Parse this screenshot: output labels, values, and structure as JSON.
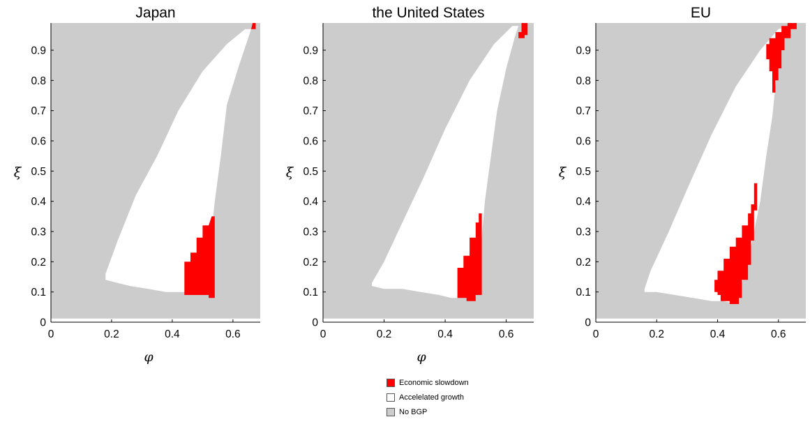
{
  "chart_data": [
    {
      "type": "heatmap",
      "title": "Japan",
      "xlabel": "φ",
      "ylabel": "ξ",
      "xlim": [
        0,
        0.69
      ],
      "ylim": [
        0,
        0.99
      ],
      "xticks": [
        "0",
        "0.2",
        "0.4",
        "0.6"
      ],
      "yticks": [
        "0",
        "0.1",
        "0.2",
        "0.3",
        "0.4",
        "0.5",
        "0.6",
        "0.7",
        "0.8",
        "0.9"
      ],
      "regions": {
        "accelerated_growth": [
          [
            0.18,
            0.14
          ],
          [
            0.22,
            0.13
          ],
          [
            0.26,
            0.12
          ],
          [
            0.32,
            0.11
          ],
          [
            0.38,
            0.1
          ],
          [
            0.44,
            0.1
          ],
          [
            0.48,
            0.09
          ],
          [
            0.52,
            0.09
          ],
          [
            0.53,
            0.3
          ],
          [
            0.54,
            0.4
          ],
          [
            0.56,
            0.55
          ],
          [
            0.58,
            0.72
          ],
          [
            0.62,
            0.85
          ],
          [
            0.66,
            0.97
          ],
          [
            0.64,
            0.97
          ],
          [
            0.58,
            0.92
          ],
          [
            0.5,
            0.83
          ],
          [
            0.42,
            0.7
          ],
          [
            0.35,
            0.55
          ],
          [
            0.28,
            0.42
          ],
          [
            0.22,
            0.27
          ],
          [
            0.18,
            0.16
          ]
        ],
        "economic_slowdown": [
          [
            [
              0.44,
              0.09
            ],
            [
              0.44,
              0.2
            ],
            [
              0.46,
              0.2
            ],
            [
              0.46,
              0.23
            ],
            [
              0.48,
              0.23
            ],
            [
              0.48,
              0.28
            ],
            [
              0.5,
              0.28
            ],
            [
              0.5,
              0.32
            ],
            [
              0.52,
              0.32
            ],
            [
              0.53,
              0.35
            ],
            [
              0.54,
              0.35
            ],
            [
              0.54,
              0.08
            ],
            [
              0.52,
              0.08
            ],
            [
              0.52,
              0.09
            ]
          ],
          [
            [
              0.66,
              0.97
            ],
            [
              0.665,
              0.99
            ],
            [
              0.675,
              0.99
            ],
            [
              0.675,
              0.97
            ]
          ]
        ]
      }
    },
    {
      "type": "heatmap",
      "title": "the United States",
      "xlabel": "φ",
      "ylabel": "ξ",
      "xlim": [
        0,
        0.69
      ],
      "ylim": [
        0,
        0.99
      ],
      "xticks": [
        "0",
        "0.2",
        "0.4",
        "0.6"
      ],
      "yticks": [
        "0",
        "0.1",
        "0.2",
        "0.3",
        "0.4",
        "0.5",
        "0.6",
        "0.7",
        "0.8",
        "0.9"
      ],
      "regions": {
        "accelerated_growth": [
          [
            0.16,
            0.12
          ],
          [
            0.2,
            0.11
          ],
          [
            0.26,
            0.11
          ],
          [
            0.32,
            0.1
          ],
          [
            0.38,
            0.09
          ],
          [
            0.42,
            0.08
          ],
          [
            0.46,
            0.08
          ],
          [
            0.5,
            0.08
          ],
          [
            0.52,
            0.28
          ],
          [
            0.53,
            0.4
          ],
          [
            0.55,
            0.55
          ],
          [
            0.57,
            0.7
          ],
          [
            0.6,
            0.84
          ],
          [
            0.63,
            0.95
          ],
          [
            0.64,
            0.98
          ],
          [
            0.62,
            0.98
          ],
          [
            0.56,
            0.92
          ],
          [
            0.48,
            0.8
          ],
          [
            0.4,
            0.64
          ],
          [
            0.33,
            0.48
          ],
          [
            0.26,
            0.33
          ],
          [
            0.2,
            0.2
          ],
          [
            0.16,
            0.13
          ]
        ],
        "economic_slowdown": [
          [
            [
              0.44,
              0.08
            ],
            [
              0.44,
              0.18
            ],
            [
              0.46,
              0.18
            ],
            [
              0.46,
              0.22
            ],
            [
              0.48,
              0.22
            ],
            [
              0.48,
              0.28
            ],
            [
              0.5,
              0.28
            ],
            [
              0.5,
              0.33
            ],
            [
              0.51,
              0.33
            ],
            [
              0.51,
              0.36
            ],
            [
              0.52,
              0.36
            ],
            [
              0.52,
              0.09
            ],
            [
              0.5,
              0.09
            ],
            [
              0.5,
              0.07
            ],
            [
              0.47,
              0.07
            ],
            [
              0.47,
              0.08
            ]
          ],
          [
            [
              0.64,
              0.94
            ],
            [
              0.64,
              0.96
            ],
            [
              0.65,
              0.96
            ],
            [
              0.65,
              0.99
            ],
            [
              0.67,
              0.99
            ],
            [
              0.67,
              0.95
            ],
            [
              0.66,
              0.95
            ],
            [
              0.66,
              0.94
            ]
          ]
        ]
      }
    },
    {
      "type": "heatmap",
      "title": "EU",
      "xlabel": "",
      "ylabel": "ξ",
      "xlim": [
        0,
        0.69
      ],
      "ylim": [
        0,
        0.99
      ],
      "xticks": [
        "0",
        "0.2",
        "0.4",
        "0.6"
      ],
      "yticks": [
        "0",
        "0.1",
        "0.2",
        "0.3",
        "0.4",
        "0.5",
        "0.6",
        "0.7",
        "0.8",
        "0.9"
      ],
      "regions": {
        "accelerated_growth": [
          [
            0.16,
            0.1
          ],
          [
            0.2,
            0.1
          ],
          [
            0.26,
            0.09
          ],
          [
            0.32,
            0.08
          ],
          [
            0.38,
            0.07
          ],
          [
            0.42,
            0.07
          ],
          [
            0.46,
            0.06
          ],
          [
            0.5,
            0.2
          ],
          [
            0.54,
            0.4
          ],
          [
            0.56,
            0.55
          ],
          [
            0.58,
            0.68
          ],
          [
            0.59,
            0.78
          ],
          [
            0.6,
            0.88
          ],
          [
            0.62,
            0.96
          ],
          [
            0.64,
            0.98
          ],
          [
            0.6,
            0.97
          ],
          [
            0.54,
            0.9
          ],
          [
            0.46,
            0.78
          ],
          [
            0.38,
            0.62
          ],
          [
            0.3,
            0.44
          ],
          [
            0.24,
            0.3
          ],
          [
            0.18,
            0.17
          ],
          [
            0.16,
            0.11
          ]
        ],
        "economic_slowdown": [
          [
            [
              0.39,
              0.1
            ],
            [
              0.39,
              0.14
            ],
            [
              0.4,
              0.14
            ],
            [
              0.4,
              0.17
            ],
            [
              0.42,
              0.17
            ],
            [
              0.42,
              0.21
            ],
            [
              0.44,
              0.21
            ],
            [
              0.44,
              0.25
            ],
            [
              0.46,
              0.25
            ],
            [
              0.46,
              0.28
            ],
            [
              0.48,
              0.28
            ],
            [
              0.48,
              0.32
            ],
            [
              0.5,
              0.32
            ],
            [
              0.5,
              0.36
            ],
            [
              0.51,
              0.36
            ],
            [
              0.51,
              0.39
            ],
            [
              0.52,
              0.39
            ],
            [
              0.52,
              0.46
            ],
            [
              0.53,
              0.46
            ],
            [
              0.53,
              0.37
            ],
            [
              0.52,
              0.37
            ],
            [
              0.52,
              0.27
            ],
            [
              0.51,
              0.27
            ],
            [
              0.51,
              0.19
            ],
            [
              0.5,
              0.19
            ],
            [
              0.5,
              0.14
            ],
            [
              0.48,
              0.14
            ],
            [
              0.48,
              0.08
            ],
            [
              0.47,
              0.08
            ],
            [
              0.47,
              0.06
            ],
            [
              0.44,
              0.06
            ],
            [
              0.44,
              0.07
            ],
            [
              0.41,
              0.07
            ],
            [
              0.41,
              0.09
            ],
            [
              0.4,
              0.09
            ],
            [
              0.4,
              0.1
            ]
          ],
          [
            [
              0.56,
              0.87
            ],
            [
              0.56,
              0.92
            ],
            [
              0.57,
              0.92
            ],
            [
              0.57,
              0.94
            ],
            [
              0.59,
              0.94
            ],
            [
              0.59,
              0.96
            ],
            [
              0.61,
              0.96
            ],
            [
              0.61,
              0.98
            ],
            [
              0.63,
              0.98
            ],
            [
              0.63,
              0.99
            ],
            [
              0.66,
              0.99
            ],
            [
              0.66,
              0.97
            ],
            [
              0.64,
              0.97
            ],
            [
              0.64,
              0.94
            ],
            [
              0.62,
              0.94
            ],
            [
              0.62,
              0.9
            ],
            [
              0.61,
              0.9
            ],
            [
              0.61,
              0.84
            ],
            [
              0.6,
              0.84
            ],
            [
              0.6,
              0.8
            ],
            [
              0.59,
              0.8
            ],
            [
              0.59,
              0.76
            ],
            [
              0.58,
              0.76
            ],
            [
              0.58,
              0.83
            ],
            [
              0.57,
              0.83
            ],
            [
              0.57,
              0.87
            ]
          ]
        ]
      }
    }
  ],
  "legend": {
    "items": [
      {
        "label": "Economic slowdown",
        "color": "#ff0000"
      },
      {
        "label": "Accelelated growth",
        "color": "#ffffff"
      },
      {
        "label": "No BGP",
        "color": "#cccccc"
      }
    ]
  },
  "colors": {
    "no_bgp": "#cccccc",
    "accelerated_growth": "#ffffff",
    "economic_slowdown": "#ff0000",
    "axis": "#000000"
  }
}
